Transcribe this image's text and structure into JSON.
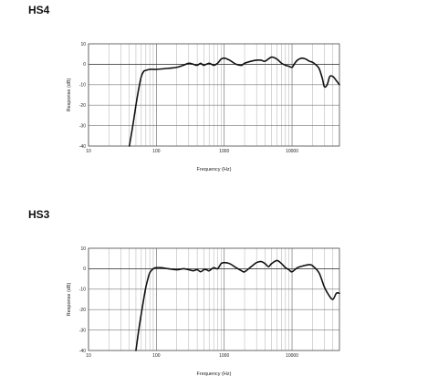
{
  "chart_data": [
    {
      "type": "line",
      "title": "HS4",
      "xlabel": "Frequency (Hz)",
      "ylabel": "Response (dB)",
      "xscale": "log",
      "xlim": [
        10,
        50000
      ],
      "ylim": [
        -40,
        10
      ],
      "grid": true,
      "x_ticks": [
        {
          "value": 10,
          "label": "10"
        },
        {
          "value": 100,
          "label": "100"
        },
        {
          "value": 1000,
          "label": "1000"
        },
        {
          "value": 10000,
          "label": "10000"
        }
      ],
      "y_ticks": [
        {
          "value": 10,
          "label": "10"
        },
        {
          "value": 0,
          "label": "0"
        },
        {
          "value": -10,
          "label": "-10"
        },
        {
          "value": -20,
          "label": "-20"
        },
        {
          "value": -30,
          "label": "-30"
        },
        {
          "value": -40,
          "label": "-40"
        }
      ],
      "series": [
        {
          "x": [
            40,
            45,
            50,
            55,
            60,
            65,
            70,
            80,
            90,
            100,
            150,
            200,
            250,
            300,
            350,
            400,
            450,
            500,
            600,
            700,
            800,
            900,
            1000,
            1200,
            1500,
            1800,
            2000,
            2500,
            3000,
            3500,
            4000,
            5000,
            6000,
            7000,
            8000,
            9000,
            10000,
            11000,
            12000,
            14000,
            16000,
            18000,
            20000,
            22000,
            25000,
            28000,
            30000,
            33000,
            36000,
            40000,
            45000,
            50000
          ],
          "values": [
            -40,
            -30,
            -20,
            -12,
            -6,
            -3.5,
            -3,
            -2.5,
            -2.5,
            -2.5,
            -2,
            -1.5,
            -0.5,
            0.5,
            0,
            -0.5,
            0.5,
            -0.5,
            0.5,
            -0.5,
            0.5,
            2.5,
            3,
            2,
            0,
            -0.5,
            0.5,
            1.5,
            2,
            2,
            1.5,
            3.5,
            2.5,
            0.5,
            -0.5,
            -1,
            -1.5,
            0.5,
            2,
            3,
            2.5,
            1.5,
            1,
            0,
            -2,
            -7,
            -11,
            -10,
            -6,
            -6,
            -8,
            -10
          ]
        }
      ]
    },
    {
      "type": "line",
      "title": "HS3",
      "xlabel": "Frequency (Hz)",
      "ylabel": "Response (dB)",
      "xscale": "log",
      "xlim": [
        10,
        50000
      ],
      "ylim": [
        -40,
        10
      ],
      "grid": true,
      "x_ticks": [
        {
          "value": 10,
          "label": "10"
        },
        {
          "value": 100,
          "label": "100"
        },
        {
          "value": 1000,
          "label": "1000"
        },
        {
          "value": 10000,
          "label": "10000"
        }
      ],
      "y_ticks": [
        {
          "value": 10,
          "label": "10"
        },
        {
          "value": 0,
          "label": "0"
        },
        {
          "value": -10,
          "label": "-10"
        },
        {
          "value": -20,
          "label": "-20"
        },
        {
          "value": -30,
          "label": "-30"
        },
        {
          "value": -40,
          "label": "-40"
        }
      ],
      "series": [
        {
          "x": [
            50,
            55,
            60,
            65,
            70,
            75,
            80,
            90,
            100,
            120,
            150,
            200,
            250,
            300,
            350,
            400,
            450,
            500,
            550,
            600,
            700,
            800,
            900,
            1000,
            1200,
            1500,
            1800,
            2000,
            2500,
            3000,
            3500,
            4000,
            4500,
            5000,
            6000,
            7000,
            8000,
            9000,
            10000,
            12000,
            15000,
            18000,
            20000,
            25000,
            30000,
            35000,
            40000,
            45000,
            50000
          ],
          "values": [
            -40,
            -30,
            -22,
            -15,
            -9,
            -5,
            -2,
            0,
            0.5,
            0.5,
            0,
            -0.5,
            0,
            -0.5,
            -1,
            -0.5,
            -1.5,
            -0.5,
            -0.5,
            -1,
            0.5,
            0,
            2.5,
            3,
            2.5,
            0.5,
            -1,
            -1.5,
            1,
            3,
            3.5,
            2.5,
            1,
            2.5,
            4,
            2.5,
            0.5,
            -0.5,
            -1.5,
            0.5,
            1.5,
            2,
            1.5,
            -2,
            -9,
            -13,
            -15,
            -12,
            -12
          ]
        }
      ]
    }
  ]
}
